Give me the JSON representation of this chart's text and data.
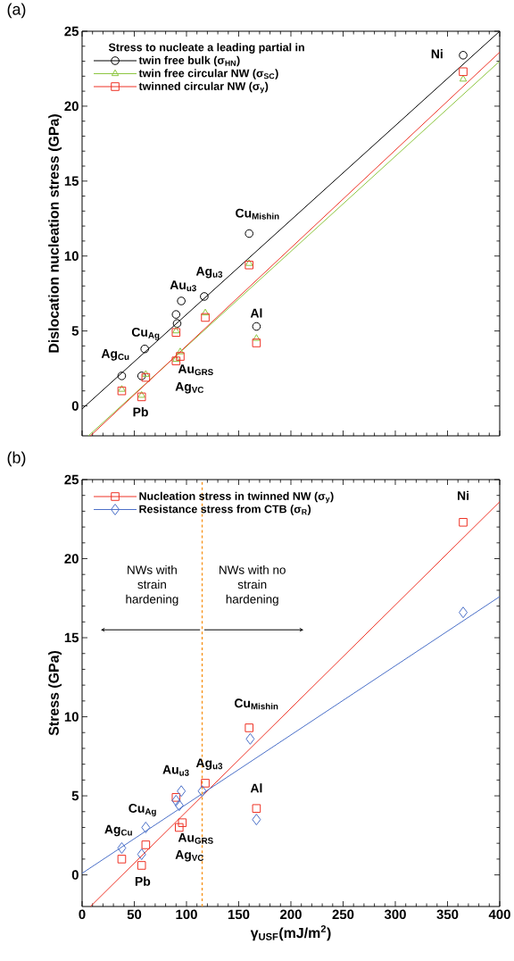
{
  "chart_data": [
    {
      "type": "scatter",
      "title": "(a)",
      "ylabel": "Dislocation nucleation stress (GPa)",
      "legend_title": "Stress to nucleate a leading partial in",
      "legend": "top left",
      "xlim": [
        0,
        400
      ],
      "xticks": [
        0,
        50,
        100,
        150,
        200,
        250,
        300,
        350,
        400
      ],
      "ylim": [
        -2,
        25
      ],
      "yticks": [
        0,
        5,
        10,
        15,
        20,
        25
      ],
      "tick_labels": "y",
      "series": [
        {
          "name": "twin free bulk (σ$_{HN}$)",
          "color": "#000000",
          "marker": "circle",
          "x": [
            38,
            57,
            60,
            90,
            91,
            95,
            117,
            160,
            167,
            365
          ],
          "values": [
            2.0,
            2.0,
            3.8,
            6.1,
            5.5,
            7.0,
            7.3,
            11.5,
            5.3,
            23.4
          ]
        },
        {
          "name": "twin free circular NW (σ$_{SC}$)",
          "color": "#8dc63f",
          "marker": "triangle",
          "x": [
            38,
            57,
            61,
            90,
            90,
            94,
            118,
            160,
            167,
            365
          ],
          "values": [
            1.1,
            0.7,
            2.1,
            5.0,
            3.1,
            3.6,
            6.2,
            9.5,
            4.5,
            21.8
          ]
        },
        {
          "name": "twinned circular NW (σ$_{y}$)",
          "color": "#ee3124",
          "marker": "square",
          "x": [
            38,
            57,
            61,
            90,
            90,
            94,
            118,
            160,
            167,
            365
          ],
          "values": [
            1.0,
            0.6,
            1.9,
            4.9,
            3.0,
            3.3,
            5.9,
            9.4,
            4.2,
            22.3
          ]
        },
        {
          "type": "line",
          "color": "#000000",
          "line_style": "solid",
          "x": [
            0,
            400
          ],
          "values": [
            -0.2,
            25
          ]
        },
        {
          "type": "line",
          "color": "#8dc63f",
          "line_style": "solid",
          "x": [
            6,
            400
          ],
          "values": [
            -2,
            23.0
          ]
        },
        {
          "type": "line",
          "color": "#ee3124",
          "line_style": "solid",
          "x": [
            8,
            400
          ],
          "values": [
            -2,
            23.6
          ]
        }
      ],
      "annotations": [
        "Ni",
        "Cu$_{Mishin}$",
        "Ag$_{u3}$",
        "Au$_{u3}$",
        "Cu$_{Ag}$",
        "Ag$_{Cu}$",
        "Pb",
        "Au$_{GRS}$",
        "Ag$_{VC}$",
        "Al"
      ]
    },
    {
      "type": "scatter",
      "title": "(b)",
      "xlabel": "γ$_{USF}$(mJ/m$^{2}$)",
      "ylabel": "Stress (GPa)",
      "legend": "top left",
      "xlim": [
        0,
        400
      ],
      "xticks": [
        0,
        50,
        100,
        150,
        200,
        250,
        300,
        350,
        400
      ],
      "ylim": [
        -2,
        25
      ],
      "yticks": [
        0,
        5,
        10,
        15,
        20,
        25
      ],
      "series": [
        {
          "name": "Nucleation stress in twinned NW (σ$_{y}$)",
          "color": "#ee3124",
          "marker": "square",
          "x": [
            38,
            57,
            61,
            90,
            93,
            96,
            118,
            160,
            167,
            365
          ],
          "values": [
            1.0,
            0.6,
            1.9,
            4.9,
            3.0,
            3.3,
            5.8,
            9.3,
            4.2,
            22.3
          ]
        },
        {
          "name": "Resistance stress from CTB (σ$_{R}$)",
          "color": "#4a6fc8",
          "marker": "diamond",
          "x": [
            38,
            57,
            61,
            90,
            93,
            95,
            115,
            161,
            167,
            365
          ],
          "values": [
            1.7,
            1.3,
            3.0,
            4.7,
            4.4,
            5.3,
            5.3,
            8.6,
            3.5,
            16.6
          ]
        },
        {
          "type": "line",
          "color": "#ee3124",
          "line_style": "solid",
          "x": [
            8,
            400
          ],
          "values": [
            -2,
            23.6
          ]
        },
        {
          "type": "line",
          "color": "#4a6fc8",
          "line_style": "solid",
          "x": [
            0,
            400
          ],
          "values": [
            0.1,
            17.6
          ]
        }
      ],
      "ref_lines": [
        {
          "axis": "x",
          "value": 115,
          "color": "#f7941d",
          "line_style": "dashed"
        }
      ],
      "annotations": [
        "NWs with strain hardening",
        "NWs with no strain hardening",
        "Ni",
        "Cu$_{Mishin}$",
        "Ag$_{u3}$",
        "Au$_{u3}$",
        "Cu$_{Ag}$",
        "Ag$_{Cu}$",
        "Pb",
        "Au$_{GRS}$",
        "Ag$_{VC}$",
        "Al"
      ]
    }
  ]
}
